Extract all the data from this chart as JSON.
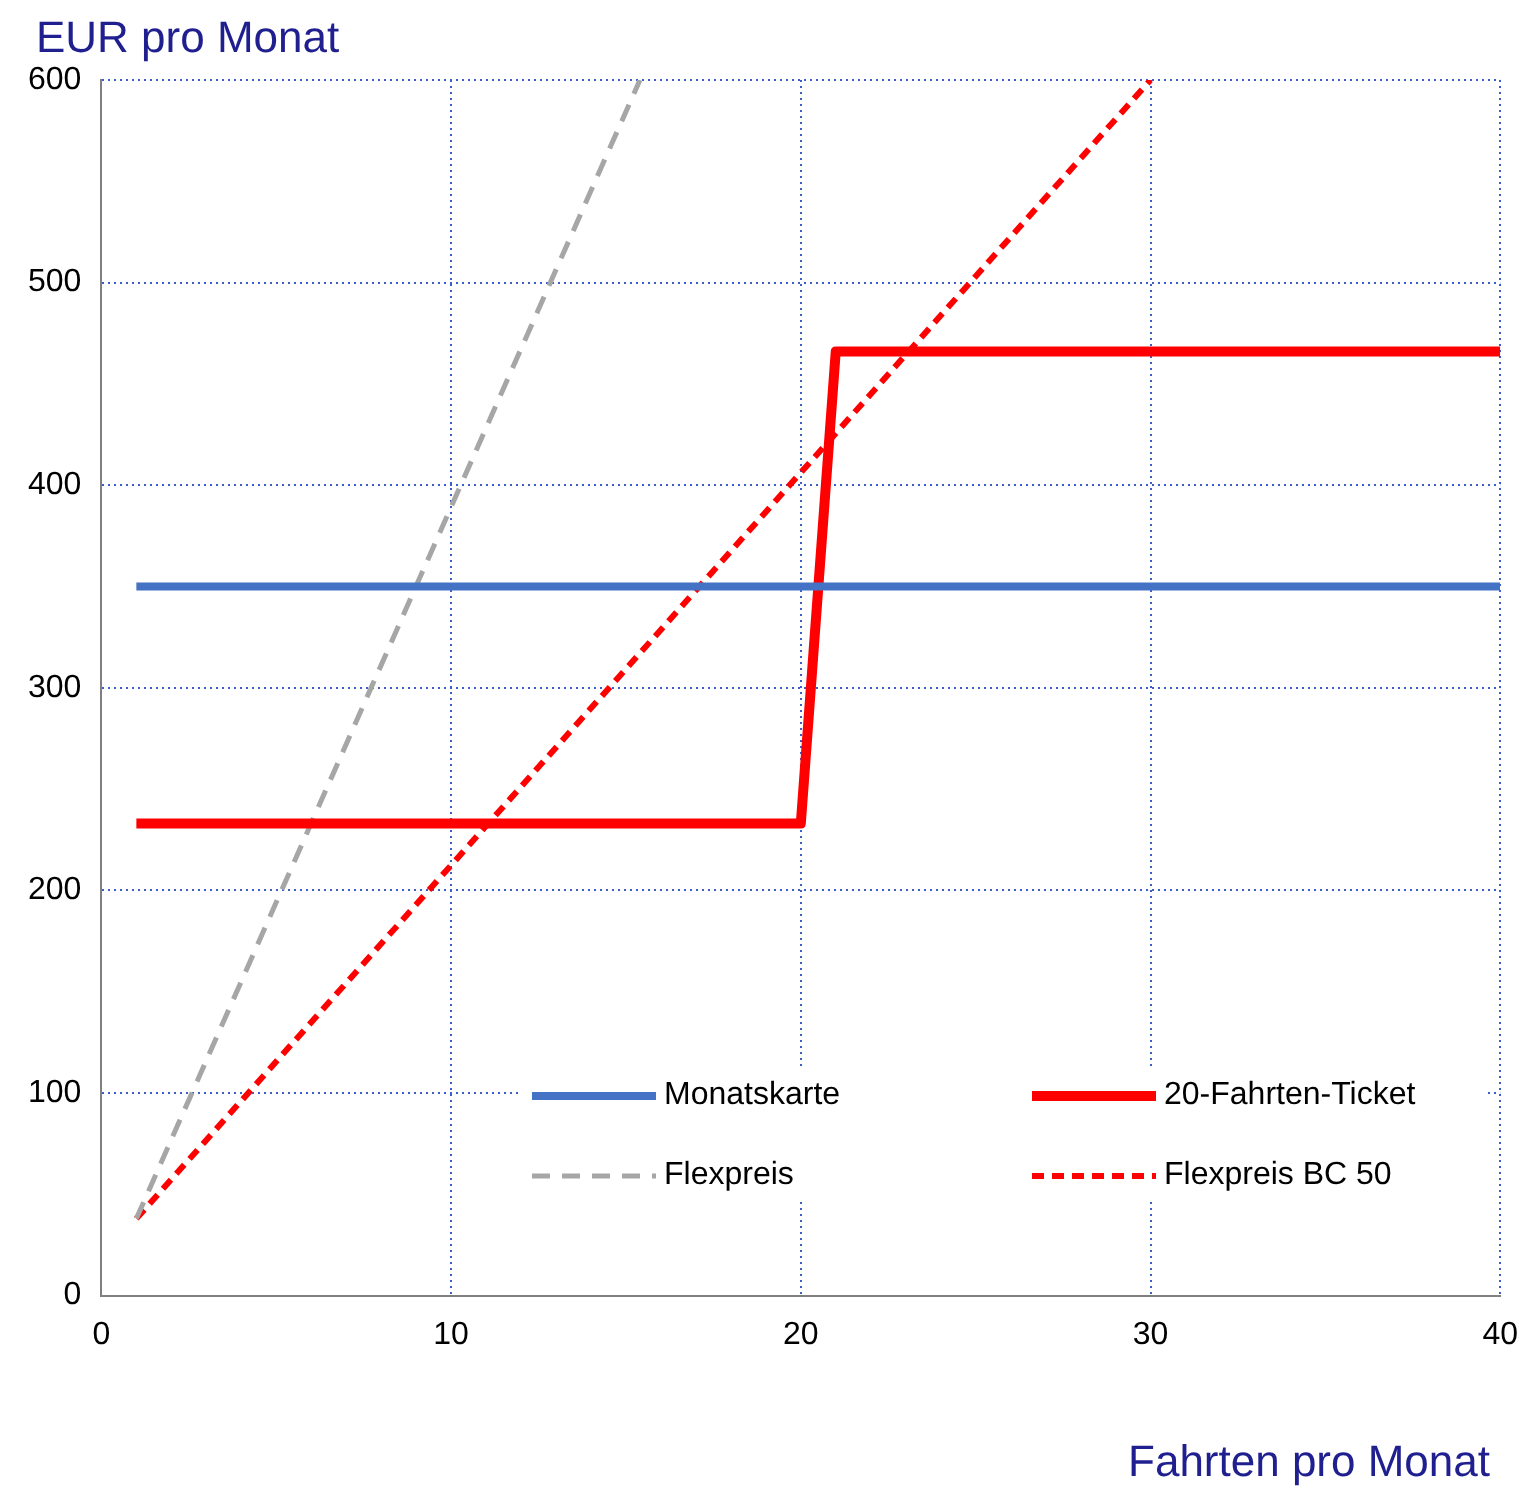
{
  "chart_data": {
    "type": "line",
    "xlabel": "Fahrten pro Monat",
    "ylabel": "EUR pro Monat",
    "xlim": [
      0,
      40
    ],
    "xticks": [
      0,
      10,
      20,
      30,
      40
    ],
    "ylim": [
      0,
      600
    ],
    "yticks": [
      0,
      100,
      200,
      300,
      400,
      500,
      600
    ],
    "grid": true,
    "legend": "bottom",
    "marker": "none",
    "series": [
      {
        "name": "Monatskarte",
        "color": "#4472c4",
        "x": [
          1,
          40
        ],
        "values": [
          350,
          350
        ],
        "line_style": "solid"
      },
      {
        "name": "20-Fahrten-Ticket",
        "color": "#ff0000",
        "x": [
          1,
          20,
          21,
          40
        ],
        "values": [
          233,
          233,
          466,
          466
        ],
        "line_style": "solid"
      },
      {
        "name": "Flexpreis",
        "color": "#a6a6a6",
        "x": [
          1,
          15.4
        ],
        "values": [
          38,
          600
        ],
        "line_style": "dashed"
      },
      {
        "name": "Flexpreis BC 50",
        "color": "#ff0000",
        "x": [
          1,
          30
        ],
        "values": [
          38,
          600
        ],
        "line_style": "dashed"
      }
    ]
  }
}
